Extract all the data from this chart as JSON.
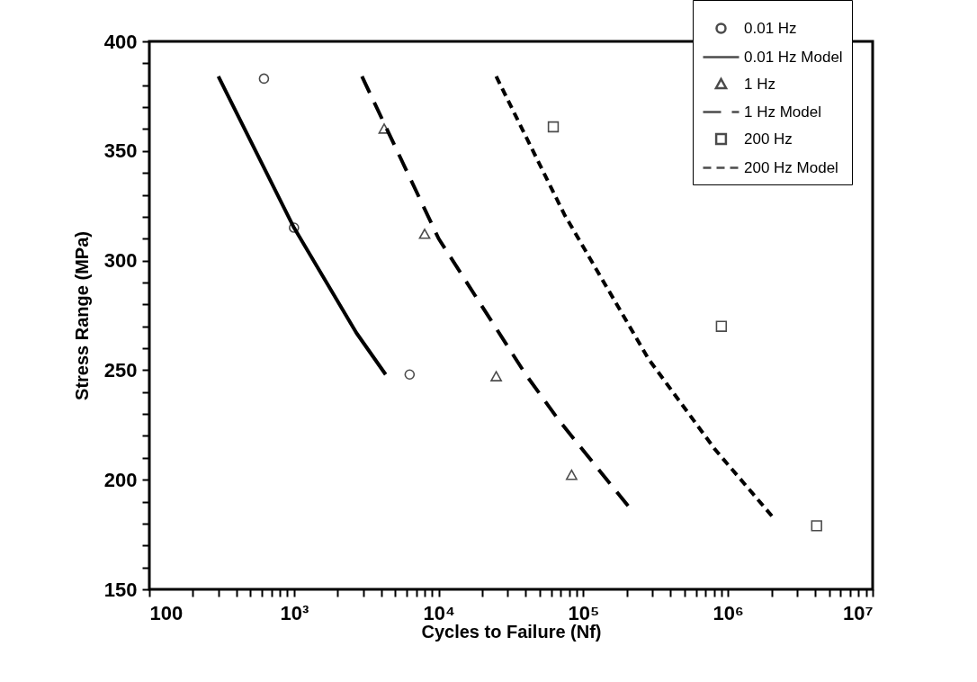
{
  "chart_data": {
    "type": "line",
    "xlabel": "Cycles to Failure (Nf)",
    "ylabel": "Stress Range (MPa)",
    "log": "x",
    "grid": false,
    "legend": "top right",
    "xlim": [
      100,
      10000000
    ],
    "ylim": [
      150,
      400
    ],
    "xticks": [
      100,
      {
        "value": 200,
        "label": null
      },
      {
        "value": 300,
        "label": null
      },
      {
        "value": 400,
        "label": null
      },
      {
        "value": 500,
        "label": null
      },
      {
        "value": 600,
        "label": null
      },
      {
        "value": 700,
        "label": null
      },
      {
        "value": 800,
        "label": null
      },
      {
        "value": 900,
        "label": null
      },
      {
        "value": 1000,
        "label": "10³"
      },
      {
        "value": 2000,
        "label": null
      },
      {
        "value": 3000,
        "label": null
      },
      {
        "value": 4000,
        "label": null
      },
      {
        "value": 5000,
        "label": null
      },
      {
        "value": 6000,
        "label": null
      },
      {
        "value": 7000,
        "label": null
      },
      {
        "value": 8000,
        "label": null
      },
      {
        "value": 9000,
        "label": null
      },
      {
        "value": 10000,
        "label": "10⁴"
      },
      {
        "value": 20000,
        "label": null
      },
      {
        "value": 30000,
        "label": null
      },
      {
        "value": 40000,
        "label": null
      },
      {
        "value": 50000,
        "label": null
      },
      {
        "value": 60000,
        "label": null
      },
      {
        "value": 70000,
        "label": null
      },
      {
        "value": 80000,
        "label": null
      },
      {
        "value": 90000,
        "label": null
      },
      {
        "value": 100000,
        "label": "10⁵"
      },
      {
        "value": 200000,
        "label": null
      },
      {
        "value": 300000,
        "label": null
      },
      {
        "value": 400000,
        "label": null
      },
      {
        "value": 500000,
        "label": null
      },
      {
        "value": 600000,
        "label": null
      },
      {
        "value": 700000,
        "label": null
      },
      {
        "value": 800000,
        "label": null
      },
      {
        "value": 900000,
        "label": null
      },
      {
        "value": 1000000,
        "label": "10⁶"
      },
      {
        "value": 2000000,
        "label": null
      },
      {
        "value": 3000000,
        "label": null
      },
      {
        "value": 4000000,
        "label": null
      },
      {
        "value": 5000000,
        "label": null
      },
      {
        "value": 6000000,
        "label": null
      },
      {
        "value": 7000000,
        "label": null
      },
      {
        "value": 8000000,
        "label": null
      },
      {
        "value": 9000000,
        "label": null
      },
      {
        "value": 10000000,
        "label": "10⁷"
      }
    ],
    "yticks": [
      150,
      {
        "value": 160,
        "label": null
      },
      {
        "value": 170,
        "label": null
      },
      {
        "value": 180,
        "label": null
      },
      {
        "value": 190,
        "label": null
      },
      200,
      {
        "value": 210,
        "label": null
      },
      {
        "value": 220,
        "label": null
      },
      {
        "value": 230,
        "label": null
      },
      {
        "value": 240,
        "label": null
      },
      250,
      {
        "value": 260,
        "label": null
      },
      {
        "value": 270,
        "label": null
      },
      {
        "value": 280,
        "label": null
      },
      {
        "value": 290,
        "label": null
      },
      300,
      {
        "value": 310,
        "label": null
      },
      {
        "value": 320,
        "label": null
      },
      {
        "value": 330,
        "label": null
      },
      {
        "value": 340,
        "label": null
      },
      350,
      {
        "value": 360,
        "label": null
      },
      {
        "value": 370,
        "label": null
      },
      {
        "value": 380,
        "label": null
      },
      {
        "value": 390,
        "label": null
      },
      400
    ],
    "series": [
      {
        "name": "0.01 Hz",
        "type": "scatter",
        "marker": "circle",
        "color": "#000000",
        "x": [
          620,
          1000,
          6300
        ],
        "values": [
          383,
          315,
          248
        ]
      },
      {
        "name": "0.01 Hz Model",
        "line_style": "solid",
        "color": "#000000",
        "x": [
          300,
          1000,
          2700,
          4300
        ],
        "values": [
          384,
          315,
          267,
          248
        ]
      },
      {
        "name": "1 Hz",
        "type": "scatter",
        "marker": "triangle",
        "color": "#000000",
        "x": [
          4200,
          8000,
          25000,
          83000
        ],
        "values": [
          360,
          312,
          247,
          202
        ]
      },
      {
        "name": "1 Hz Model",
        "line_style": "dashed",
        "color": "#000000",
        "x": [
          2950,
          10000,
          40000,
          68000,
          216000
        ],
        "values": [
          384,
          310,
          248,
          227,
          186
        ]
      },
      {
        "name": "200 Hz",
        "type": "scatter",
        "marker": "square",
        "color": "#000000",
        "x": [
          62000,
          900000,
          4100000
        ],
        "values": [
          361,
          270,
          179
        ]
      },
      {
        "name": "200 Hz Model",
        "line_style": "dotted",
        "color": "#000000",
        "x": [
          25000,
          74000,
          283000,
          810000,
          2100000
        ],
        "values": [
          384,
          321,
          255,
          214,
          182
        ]
      }
    ]
  }
}
